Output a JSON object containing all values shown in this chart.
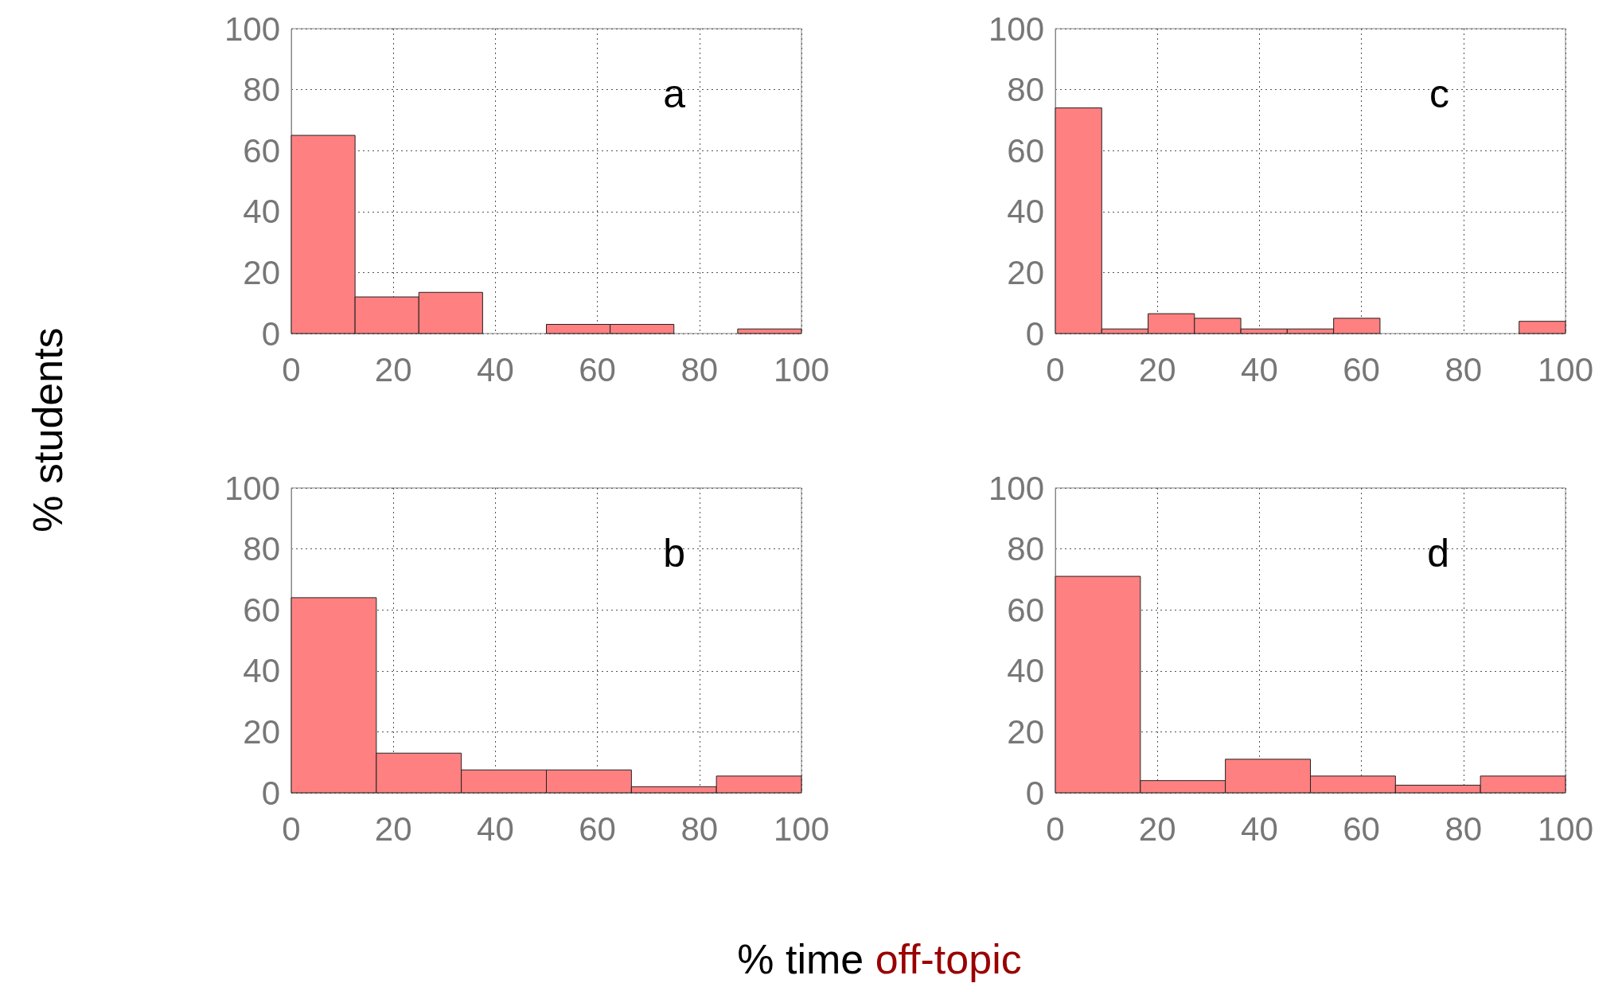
{
  "chart_data": [
    {
      "type": "histogram",
      "title": "a",
      "ylabel": "% students",
      "bins": [
        0,
        12.5,
        25,
        37.5,
        50,
        62.5,
        75,
        87.5,
        100
      ],
      "values": [
        65,
        12,
        13.5,
        0,
        3,
        3,
        0,
        1.5
      ],
      "color": "#ff8080",
      "xlim": [
        0,
        100
      ],
      "xticks": [
        0,
        20,
        40,
        60,
        80,
        100
      ],
      "ylim": [
        0,
        100
      ],
      "yticks": [
        0,
        20,
        40,
        60,
        80,
        100
      ],
      "grid": true
    },
    {
      "type": "histogram",
      "title": "c",
      "bins": [
        0,
        9.09,
        18.18,
        27.27,
        36.36,
        45.45,
        54.55,
        63.64,
        72.73,
        81.82,
        90.91,
        100
      ],
      "values": [
        74,
        1.5,
        6.5,
        5,
        1.5,
        1.5,
        5,
        0,
        0,
        0,
        4
      ],
      "color": "#ff8080",
      "xlim": [
        0,
        100
      ],
      "xticks": [
        0,
        20,
        40,
        60,
        80,
        100
      ],
      "ylim": [
        0,
        100
      ],
      "yticks": [
        0,
        20,
        40,
        60,
        80,
        100
      ],
      "grid": true
    },
    {
      "type": "histogram",
      "title": "b",
      "xlabel": "% time off-topic",
      "bins": [
        0,
        16.67,
        33.33,
        50,
        66.67,
        83.33,
        100
      ],
      "values": [
        64,
        13,
        7.5,
        7.5,
        2,
        5.5
      ],
      "color": "#ff8080",
      "xlim": [
        0,
        100
      ],
      "xticks": [
        0,
        20,
        40,
        60,
        80,
        100
      ],
      "ylim": [
        0,
        100
      ],
      "yticks": [
        0,
        20,
        40,
        60,
        80,
        100
      ],
      "grid": true
    },
    {
      "type": "histogram",
      "title": "d",
      "bins": [
        0,
        16.67,
        33.33,
        50,
        66.67,
        83.33,
        100
      ],
      "values": [
        71,
        4,
        11,
        5.5,
        2.5,
        5.5
      ],
      "color": "#ff8080",
      "xlim": [
        0,
        100
      ],
      "xticks": [
        0,
        20,
        40,
        60,
        80,
        100
      ],
      "ylim": [
        0,
        100
      ],
      "yticks": [
        0,
        20,
        40,
        60,
        80,
        100
      ],
      "grid": true
    }
  ]
}
